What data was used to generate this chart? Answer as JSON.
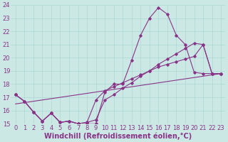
{
  "xlabel": "Windchill (Refroidissement éolien,°C)",
  "bg_color": "#cce8e4",
  "line_color": "#883388",
  "grid_color": "#aad8d4",
  "xlim": [
    -0.5,
    23.5
  ],
  "ylim": [
    15,
    24
  ],
  "xticks": [
    0,
    1,
    2,
    3,
    4,
    5,
    6,
    7,
    8,
    9,
    10,
    11,
    12,
    13,
    14,
    15,
    16,
    17,
    18,
    19,
    20,
    21,
    22,
    23
  ],
  "yticks": [
    15,
    16,
    17,
    18,
    19,
    20,
    21,
    22,
    23,
    24
  ],
  "line1_x": [
    0,
    1,
    2,
    3,
    4,
    5,
    6,
    7,
    8,
    9,
    10,
    11,
    12,
    13,
    14,
    15,
    16,
    17,
    18,
    19,
    20,
    21,
    22,
    23
  ],
  "line1_y": [
    17.2,
    16.7,
    15.9,
    15.2,
    15.8,
    15.1,
    15.2,
    15.0,
    15.0,
    15.0,
    17.4,
    18.0,
    18.0,
    19.8,
    21.7,
    23.0,
    23.8,
    23.3,
    21.7,
    21.0,
    18.9,
    18.8,
    18.8,
    18.8
  ],
  "line2_x": [
    0,
    1,
    2,
    3,
    4,
    5,
    6,
    7,
    8,
    9,
    10,
    11,
    12,
    13,
    14,
    15,
    16,
    17,
    18,
    19,
    20,
    21,
    22,
    23
  ],
  "line2_y": [
    17.2,
    16.7,
    15.9,
    15.2,
    15.8,
    15.1,
    15.2,
    15.0,
    15.1,
    16.8,
    17.5,
    17.8,
    18.1,
    18.4,
    18.7,
    19.0,
    19.3,
    19.5,
    19.7,
    19.9,
    20.1,
    21.0,
    18.8,
    18.8
  ],
  "line3_x": [
    0,
    23
  ],
  "line3_y": [
    16.5,
    18.8
  ],
  "line4_x": [
    0,
    1,
    2,
    3,
    4,
    5,
    6,
    7,
    8,
    9,
    10,
    11,
    12,
    13,
    14,
    15,
    16,
    17,
    18,
    19,
    20,
    21,
    22,
    23
  ],
  "line4_y": [
    17.2,
    16.7,
    15.9,
    15.2,
    15.8,
    15.1,
    15.2,
    15.0,
    15.1,
    15.3,
    16.8,
    17.2,
    17.7,
    18.1,
    18.6,
    19.0,
    19.5,
    19.9,
    20.3,
    20.7,
    21.1,
    21.0,
    18.8,
    18.8
  ],
  "xlabel_fontsize": 7.0,
  "tick_fontsize": 6.0,
  "label_color": "#883388"
}
